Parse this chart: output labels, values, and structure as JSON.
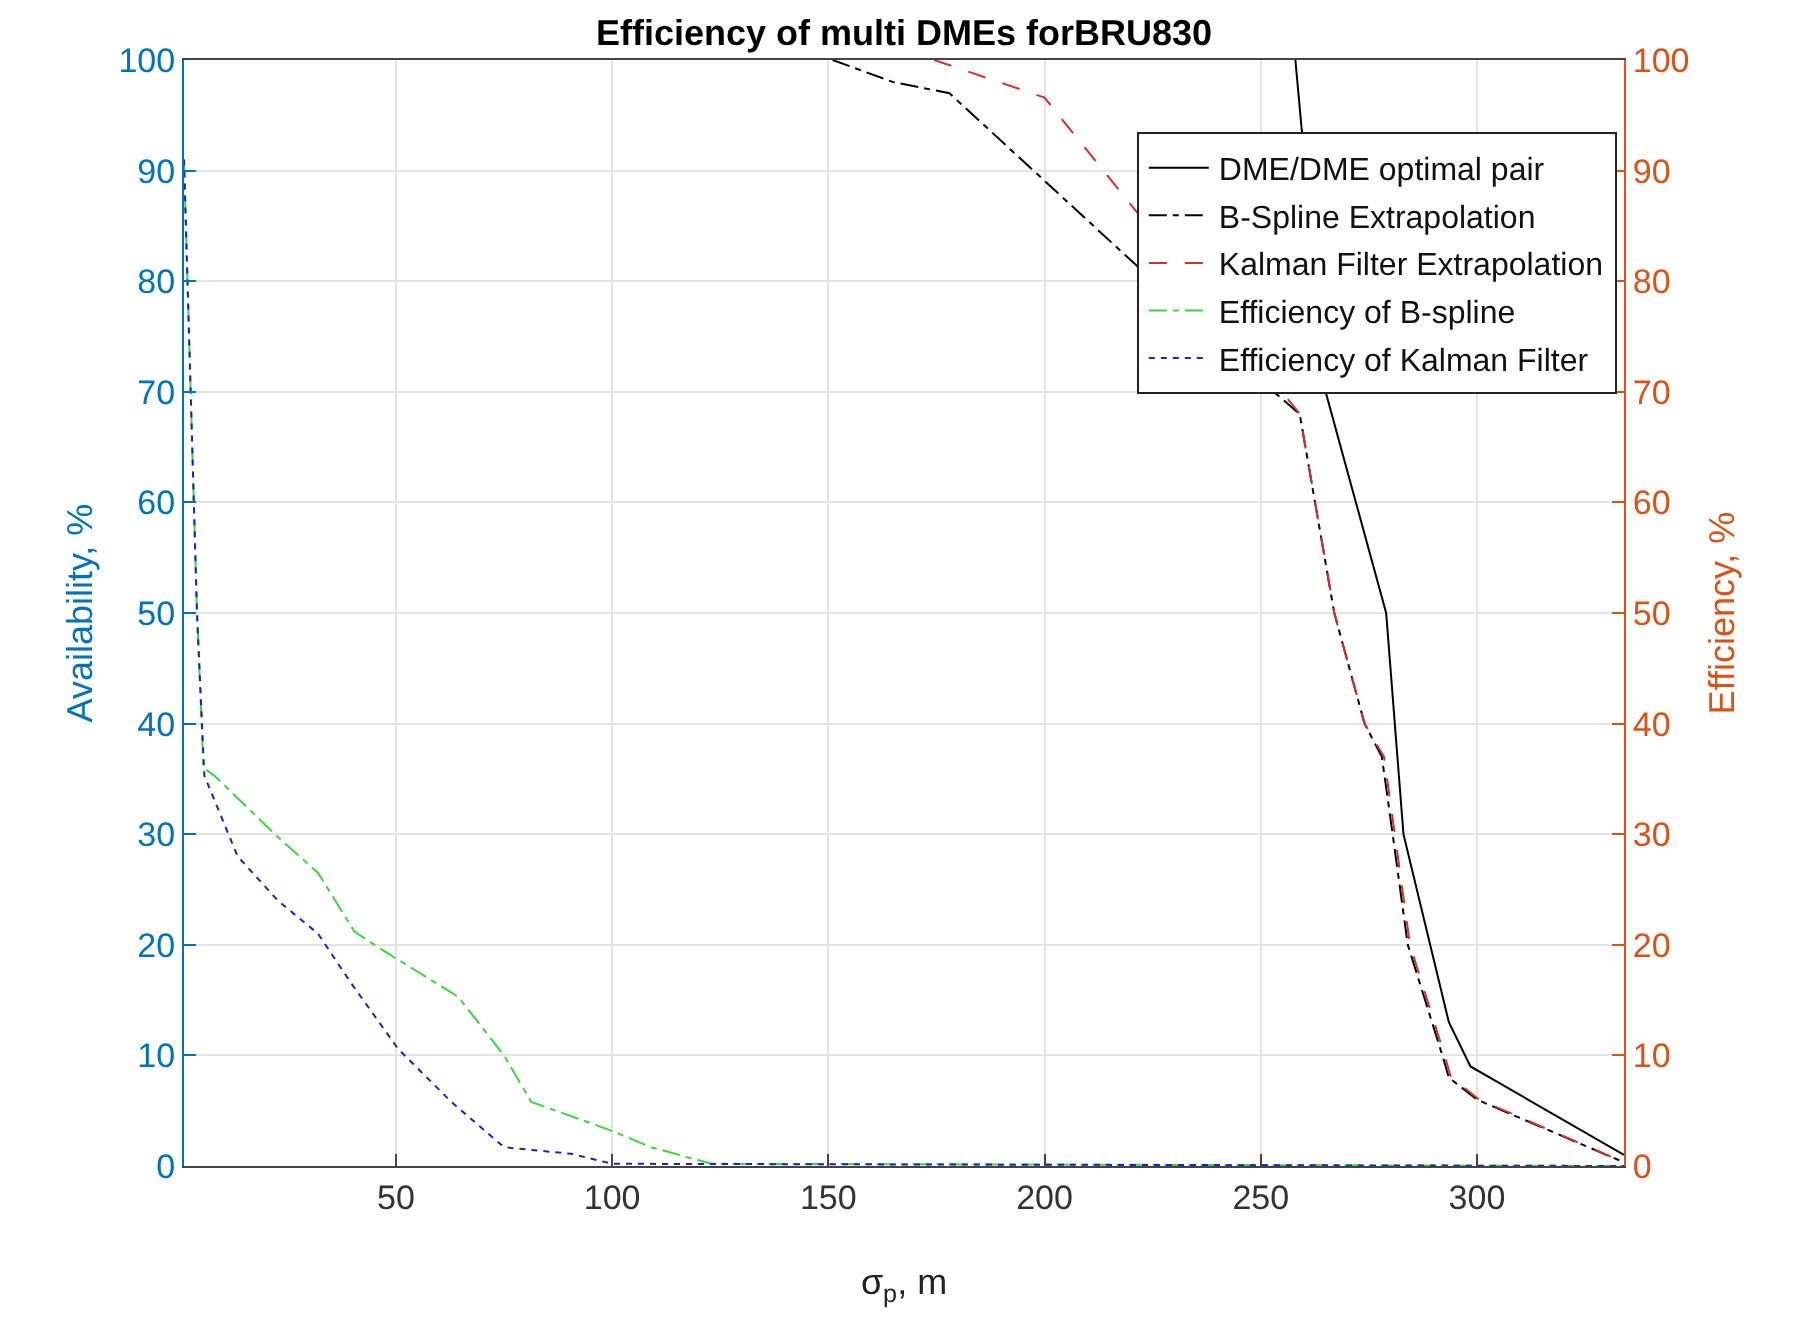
{
  "chart_data": {
    "type": "line",
    "title": "Efficiency of multi DMEs forBRU830",
    "xlabel": "σ$_{p}$, m",
    "ylabel": "Availability, %",
    "y2label": "Efficiency, %",
    "xlim": [
      1,
      334
    ],
    "xticks": [
      50,
      100,
      150,
      200,
      250,
      300
    ],
    "ylim": [
      0,
      100
    ],
    "yticks": [
      0,
      10,
      20,
      30,
      40,
      50,
      60,
      70,
      80,
      90,
      100
    ],
    "y2lim": [
      0,
      100
    ],
    "y2ticks": [
      0,
      10,
      20,
      30,
      40,
      50,
      60,
      70,
      80,
      90,
      100
    ],
    "grid": true,
    "legend": "top right",
    "marker": "none",
    "series": [
      {
        "name": "DME/DME optimal pair",
        "color": "#000000",
        "line_style": "solid",
        "x": [
          258,
          265,
          272,
          279,
          283,
          293.5,
          298.5,
          334
        ],
        "values": [
          100,
          70,
          60,
          50,
          30,
          13,
          9,
          1
        ]
      },
      {
        "name": "B-Spline Extrapolation",
        "color": "#000000",
        "line_style": "dashdot",
        "x": [
          151,
          165,
          178,
          253,
          259,
          267,
          274,
          278,
          280.5,
          284,
          292,
          293.5,
          300,
          333
        ],
        "values": [
          100,
          98,
          97,
          70,
          68,
          50,
          40,
          37,
          30,
          20,
          10,
          8,
          6,
          0.5
        ]
      },
      {
        "name": "Kalman Filter Extrapolation",
        "color": "#d03030",
        "line_style": "dashed",
        "x": [
          174.5,
          200,
          259,
          267,
          274,
          278.5,
          281,
          284.5,
          292.5,
          294,
          300.5,
          333
        ],
        "values": [
          100,
          96.6,
          68,
          50,
          40,
          37,
          30,
          20,
          10,
          8,
          6,
          0.5
        ]
      },
      {
        "name": "Efficiency of B-spline",
        "color": "#3fd43f",
        "line_style": "dashdot",
        "axis": "y2",
        "x": [
          1,
          4,
          5.5,
          8,
          22,
          32,
          40.4,
          47.4,
          64.4,
          75,
          81.3,
          99.8,
          109,
          123,
          334
        ],
        "values": [
          91,
          50,
          36,
          35.3,
          30,
          26.5,
          21.2,
          19.4,
          15.3,
          10,
          5.8,
          3.2,
          1.7,
          0.2,
          0
        ]
      },
      {
        "name": "Efficiency of Kalman Filter",
        "color": "#2020c0",
        "line_style": "dotted",
        "axis": "y2",
        "x": [
          1,
          4,
          5.7,
          13.4,
          22.7,
          32,
          39.7,
          50.5,
          62.8,
          75,
          90.6,
          100,
          334
        ],
        "values": [
          91,
          50,
          35.3,
          28,
          24,
          21,
          16.5,
          10.6,
          5.8,
          1.7,
          1.1,
          0.2,
          0
        ]
      }
    ]
  }
}
